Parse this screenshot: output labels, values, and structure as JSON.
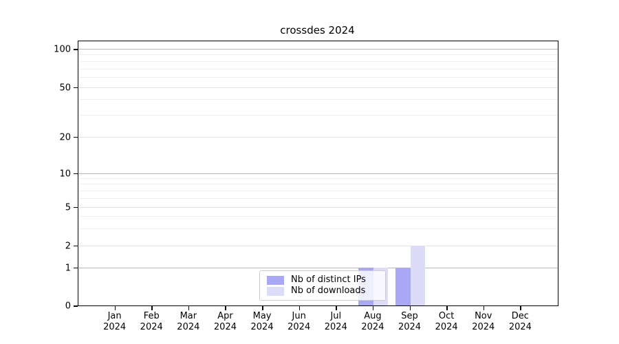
{
  "title": "crossdes 2024",
  "chart_data": {
    "type": "bar",
    "title": "crossdes 2024",
    "categories": [
      "Jan",
      "Feb",
      "Mar",
      "Apr",
      "May",
      "Jun",
      "Jul",
      "Aug",
      "Sep",
      "Oct",
      "Nov",
      "Dec"
    ],
    "category_sublabel": "2024",
    "series": [
      {
        "name": "Nb of distinct IPs",
        "color": "#a8a8f5",
        "values": [
          0,
          0,
          0,
          0,
          0,
          0,
          0,
          1,
          1,
          0,
          0,
          0
        ]
      },
      {
        "name": "Nb of downloads",
        "color": "#dcdcf9",
        "values": [
          0,
          0,
          0,
          0,
          0,
          0,
          0,
          1,
          2,
          0,
          0,
          0
        ]
      }
    ],
    "yaxis": {
      "scale": "log-like (linear 0-1, log above)",
      "major_ticks": [
        0,
        1,
        2,
        5,
        10,
        20,
        50,
        100
      ],
      "emphasized_gridlines": [
        1,
        10,
        100
      ],
      "minor_gridlines": [
        3,
        4,
        6,
        7,
        8,
        9,
        30,
        40,
        60,
        70,
        80,
        90
      ],
      "range_top": 115
    },
    "grid": "horizontal only",
    "legend_position": "lower center inside plot"
  },
  "colors": {
    "axis": "#000000",
    "grid_major": "#b8b8b8",
    "grid_mid": "#e3e3e3",
    "grid_minor": "#efefef",
    "legend_border": "#cccccc"
  }
}
